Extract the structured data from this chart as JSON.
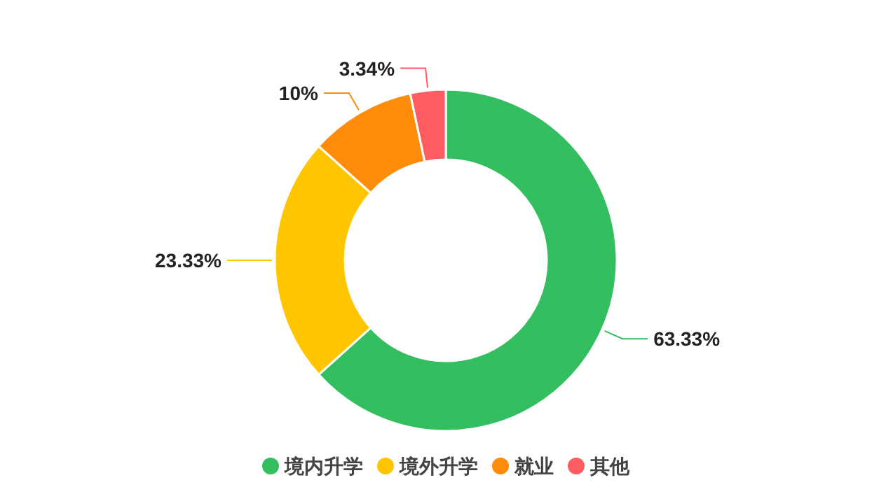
{
  "chart_data": {
    "type": "donut",
    "categories": [
      "境内升学",
      "境外升学",
      "就业",
      "其他"
    ],
    "values": [
      63.33,
      23.33,
      10,
      3.34
    ],
    "value_labels": [
      "63.33%",
      "23.33%",
      "10%",
      "3.34%"
    ],
    "colors": [
      "#33bf5f",
      "#ffc600",
      "#ff8c0a",
      "#ff5c62"
    ],
    "legend": "bottom"
  }
}
